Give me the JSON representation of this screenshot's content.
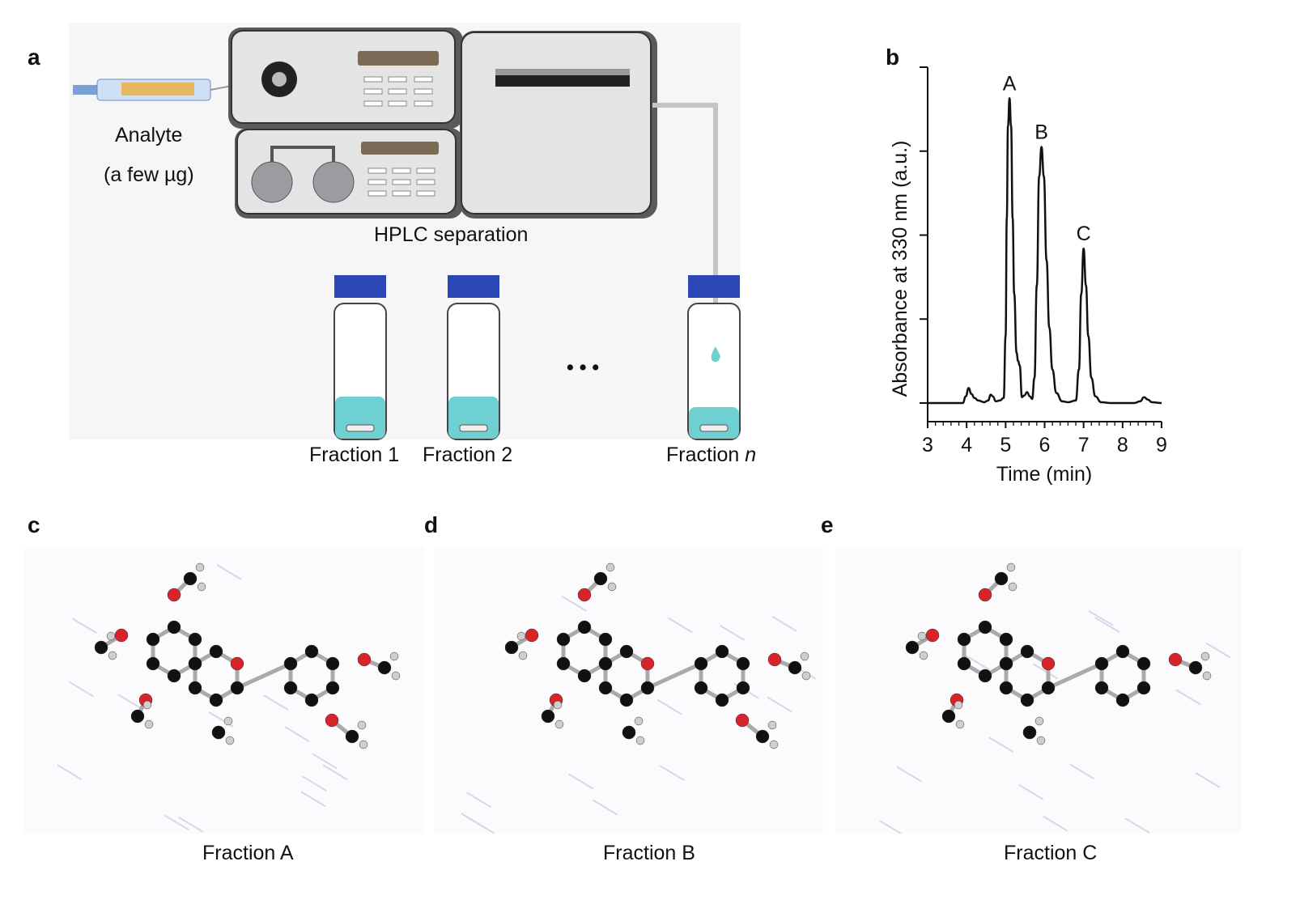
{
  "panels": {
    "a": {
      "letter": "a",
      "analyte_label": "Analyte",
      "analyte_amount": "(a few µg)",
      "hplc_label": "HPLC separation",
      "fractions": [
        "Fraction 1",
        "Fraction 2"
      ],
      "fraction_n_prefix": "Fraction ",
      "fraction_n_var": "n",
      "ellipsis": "• • •"
    },
    "b": {
      "letter": "b"
    },
    "c": {
      "letter": "c",
      "caption": "Fraction A"
    },
    "d": {
      "letter": "d",
      "caption": "Fraction B"
    },
    "e": {
      "letter": "e",
      "caption": "Fraction C"
    }
  },
  "colors": {
    "vial_cap": "#2a47b5",
    "liquid": "#6fd0d2",
    "oxygen": "#d8232a",
    "carbon": "#111111",
    "hydrogen": "#cfcfcf"
  },
  "chart_data": {
    "type": "line",
    "xlabel": "Time (min)",
    "ylabel": "Absorbance at 330 nm (a.u.)",
    "xlim": [
      3,
      9
    ],
    "ylim": [
      0,
      4
    ],
    "xticks": [
      "3",
      "4",
      "5",
      "6",
      "7",
      "8",
      "9"
    ],
    "grid": false,
    "peak_labels": [
      {
        "label": "A",
        "x": 5.1,
        "y": 3.63
      },
      {
        "label": "B",
        "x": 5.92,
        "y": 3.05
      },
      {
        "label": "C",
        "x": 7.0,
        "y": 1.84
      }
    ],
    "series": [
      {
        "x": [
          3,
          3.5,
          3.9,
          3.98,
          4.05,
          4.12,
          4.2,
          4.3,
          4.45,
          4.55,
          4.62,
          4.67,
          4.75,
          4.85,
          4.95,
          5.0,
          5.03,
          5.06,
          5.1,
          5.14,
          5.18,
          5.22,
          5.28,
          5.32,
          5.36,
          5.42,
          5.48,
          5.55,
          5.62,
          5.68,
          5.74,
          5.8,
          5.86,
          5.92,
          5.98,
          6.05,
          6.12,
          6.2,
          6.3,
          6.45,
          6.6,
          6.8,
          6.88,
          6.94,
          7.0,
          7.06,
          7.12,
          7.2,
          7.3,
          7.45,
          7.7,
          8.3,
          8.45,
          8.55,
          8.65,
          8.75,
          9
        ],
        "y": [
          0,
          0,
          0,
          0.08,
          0.18,
          0.11,
          0.06,
          0.03,
          0.01,
          0.03,
          0.1,
          0.08,
          0.02,
          0.03,
          0.06,
          0.8,
          2.2,
          3.3,
          3.63,
          3.3,
          2.2,
          1.3,
          0.6,
          0.5,
          0.45,
          0.07,
          0.09,
          0.13,
          0.08,
          0.05,
          0.3,
          1.4,
          2.7,
          3.05,
          2.7,
          1.7,
          0.9,
          0.4,
          0.12,
          0.02,
          0.01,
          0.03,
          0.4,
          1.3,
          1.84,
          1.4,
          0.8,
          0.3,
          0.08,
          0.01,
          0,
          0,
          0.02,
          0.07,
          0.04,
          0.01,
          0
        ]
      }
    ]
  }
}
